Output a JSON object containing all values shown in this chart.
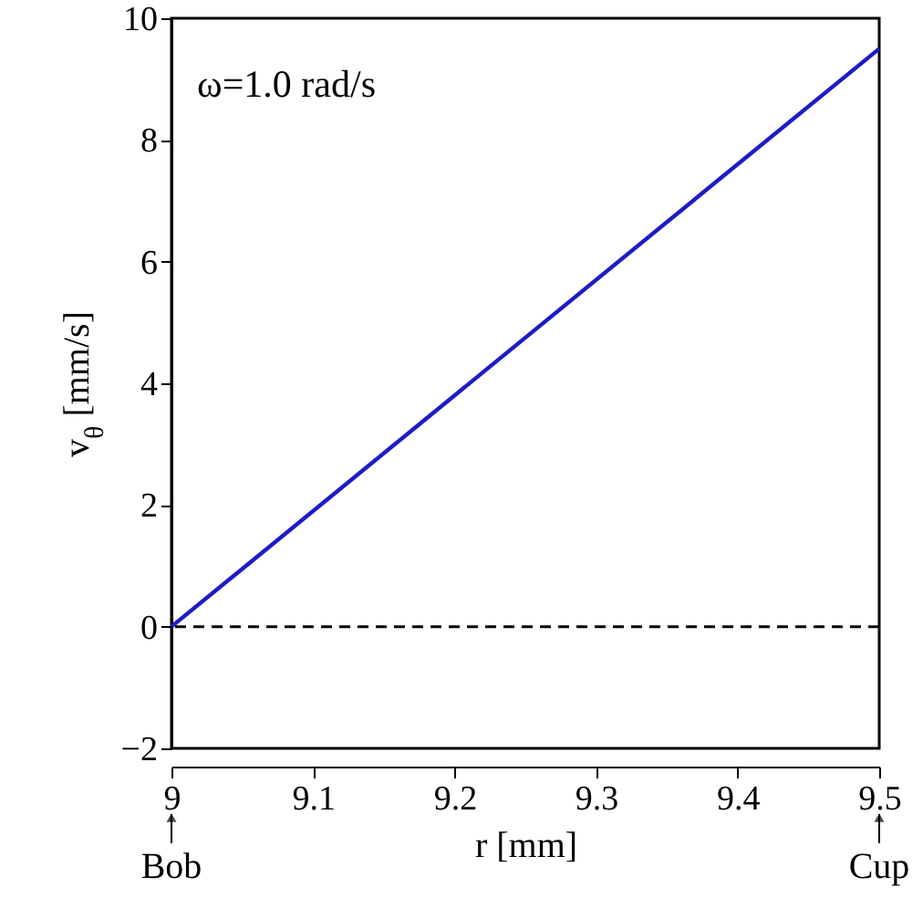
{
  "chart_data": {
    "type": "line",
    "xlabel": "r  [mm]",
    "ylabel": "v$_{θ}$  [mm/s]",
    "x": [
      9,
      9.5
    ],
    "series": [
      {
        "color": "#1c1cc8",
        "values": [
          0,
          9.5
        ]
      }
    ],
    "xlim": [
      9,
      9.5
    ],
    "xticks": [
      9,
      9.1,
      9.2,
      9.3,
      9.4,
      9.5
    ],
    "ylim": [
      -2,
      10
    ],
    "yticks": [
      -2,
      0,
      2,
      4,
      6,
      8,
      10
    ],
    "ref_lines": [
      {
        "axis": "y",
        "value": 0,
        "color": "#000000",
        "line_style": "dashed"
      }
    ],
    "annotations": [
      "ω=1.0 rad/s",
      {
        "text": "Bob",
        "x": 9
      },
      {
        "text": "Cup",
        "x": 9.5
      }
    ],
    "grid": false,
    "marker": "none",
    "line_style": "solid"
  }
}
